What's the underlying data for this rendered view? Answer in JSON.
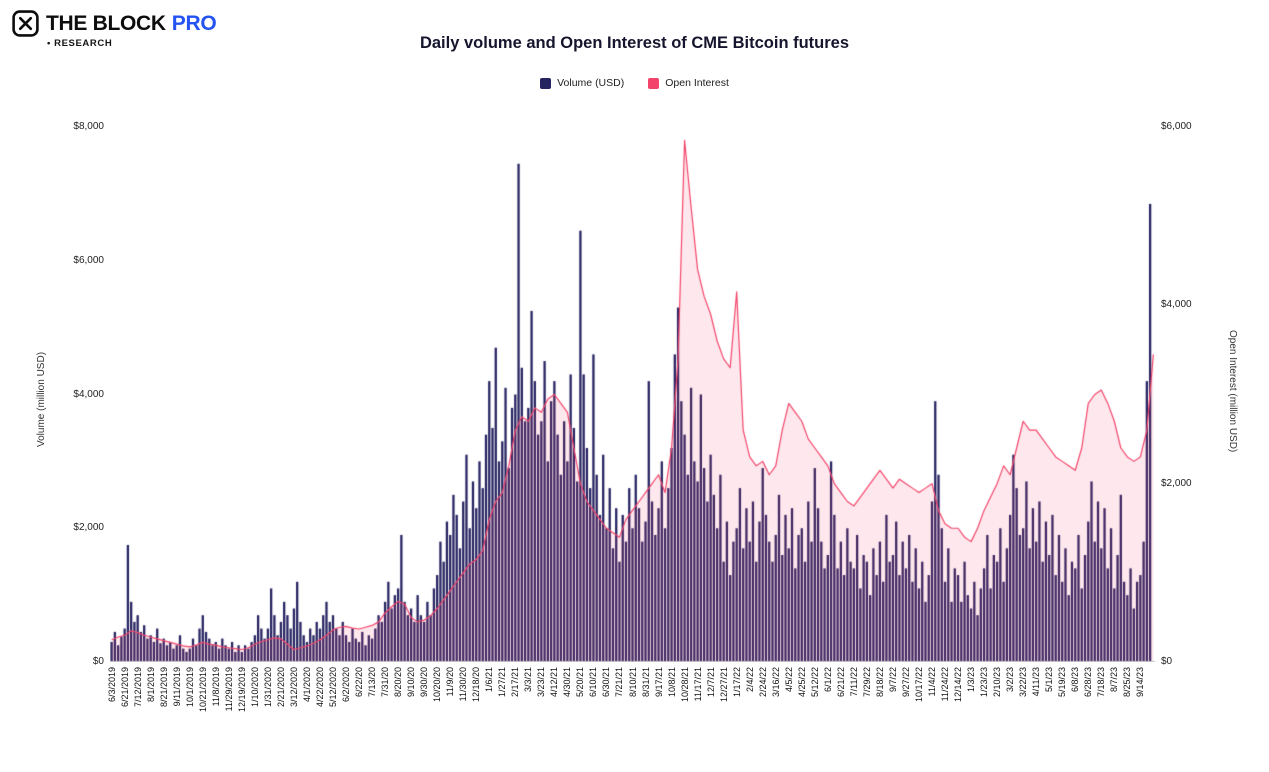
{
  "brand": {
    "name": "THE BLOCK",
    "suffix": "PRO",
    "sub": "• RESEARCH",
    "pro_color": "#2453f2"
  },
  "chart_data": {
    "type": "mixed",
    "title": "Daily volume and Open Interest of CME Bitcoin futures",
    "legend": [
      {
        "label": "Volume (USD)",
        "color": "#262361",
        "type": "bar"
      },
      {
        "label": "Open Interest",
        "color": "#f3456b",
        "type": "line"
      }
    ],
    "left_axis": {
      "label": "Volume (million USD)",
      "max": 8000,
      "ticks": [
        0,
        2000,
        4000,
        6000,
        8000
      ],
      "tick_labels": [
        "$0",
        "$2,000",
        "$4,000",
        "$6,000",
        "$8,000"
      ]
    },
    "right_axis": {
      "label": "Open Interest (million USD)",
      "max": 6000,
      "ticks": [
        0,
        2000,
        4000,
        6000
      ],
      "tick_labels": [
        "$0",
        "$2,000",
        "$4,000",
        "$6,000"
      ]
    },
    "x_labels": [
      "6/3/2019",
      "6/21/2019",
      "7/12/2019",
      "8/1/2019",
      "8/21/2019",
      "9/11/2019",
      "10/1/2019",
      "10/21/2019",
      "11/8/2019",
      "11/29/2019",
      "12/19/2019",
      "1/10/2020",
      "1/31/2020",
      "2/21/2020",
      "3/12/2020",
      "4/1/2020",
      "4/22/2020",
      "5/12/2020",
      "6/2/2020",
      "6/22/20",
      "7/13/20",
      "7/31/20",
      "8/20/20",
      "9/10/20",
      "9/30/20",
      "10/20/20",
      "11/9/20",
      "11/30/20",
      "12/18/20",
      "1/6/21",
      "1/27/21",
      "2/17/21",
      "3/3/21",
      "3/23/21",
      "4/12/21",
      "4/30/21",
      "5/20/21",
      "6/10/21",
      "6/30/21",
      "7/21/21",
      "8/10/21",
      "8/31/21",
      "9/17/21",
      "10/8/21",
      "10/28/21",
      "11/17/21",
      "12/7/21",
      "12/27/21",
      "1/17/22",
      "2/4/22",
      "2/24/22",
      "3/16/22",
      "4/5/22",
      "4/25/22",
      "5/12/22",
      "6/1/22",
      "6/21/22",
      "7/11/22",
      "7/29/22",
      "8/18/22",
      "9/7/22",
      "9/27/22",
      "10/17/22",
      "11/4/22",
      "11/24/22",
      "12/14/22",
      "1/3/23",
      "1/23/23",
      "2/10/23",
      "3/2/23",
      "3/22/23",
      "4/11/23",
      "5/1/23",
      "5/19/23",
      "6/8/23",
      "6/28/23",
      "7/18/23",
      "8/7/23",
      "8/25/23",
      "9/14/23"
    ],
    "bars_per_label": 4,
    "series": [
      {
        "name": "Volume (USD)",
        "type": "bar",
        "axis": "left",
        "color": "#262361",
        "values": [
          300,
          450,
          250,
          380,
          500,
          1750,
          900,
          600,
          700,
          450,
          550,
          350,
          400,
          300,
          500,
          280,
          350,
          250,
          300,
          200,
          250,
          400,
          200,
          150,
          200,
          350,
          250,
          500,
          700,
          450,
          350,
          250,
          300,
          200,
          350,
          250,
          200,
          300,
          150,
          250,
          150,
          250,
          200,
          300,
          400,
          700,
          500,
          350,
          500,
          1100,
          700,
          400,
          600,
          900,
          700,
          500,
          800,
          1200,
          600,
          400,
          300,
          500,
          400,
          600,
          500,
          700,
          900,
          600,
          700,
          500,
          400,
          600,
          400,
          300,
          500,
          350,
          300,
          450,
          250,
          400,
          350,
          500,
          700,
          600,
          900,
          1200,
          800,
          1000,
          1100,
          1900,
          900,
          700,
          800,
          600,
          1000,
          700,
          600,
          900,
          700,
          1100,
          1300,
          1800,
          1500,
          2100,
          1900,
          2500,
          2200,
          1700,
          2400,
          3100,
          2000,
          2700,
          2300,
          3000,
          2600,
          3400,
          4200,
          3500,
          4700,
          3000,
          3300,
          4100,
          2900,
          3800,
          4000,
          7450,
          4400,
          3600,
          3800,
          5250,
          4200,
          3400,
          3600,
          4500,
          3000,
          3900,
          4200,
          3400,
          2800,
          3600,
          3000,
          4300,
          3500,
          2700,
          6450,
          4300,
          3200,
          2600,
          4600,
          2800,
          2200,
          3100,
          2000,
          2600,
          1700,
          2300,
          1500,
          2200,
          1800,
          2600,
          2000,
          2800,
          2300,
          1800,
          2100,
          4200,
          2400,
          1900,
          2300,
          3000,
          2000,
          2600,
          3200,
          4600,
          5300,
          3900,
          3400,
          2800,
          4100,
          3000,
          2700,
          4000,
          2900,
          2400,
          3100,
          2500,
          2000,
          2800,
          1500,
          2100,
          1300,
          1800,
          2000,
          2600,
          1700,
          2300,
          1800,
          2400,
          1500,
          2100,
          2900,
          2200,
          1800,
          1500,
          1900,
          2500,
          1600,
          2200,
          1700,
          2300,
          1400,
          1900,
          2000,
          1500,
          2400,
          1800,
          2900,
          2300,
          1800,
          1400,
          1600,
          3000,
          2200,
          1400,
          1800,
          1300,
          2000,
          1500,
          1400,
          1900,
          1100,
          1600,
          1500,
          1000,
          1700,
          1300,
          1800,
          1200,
          2200,
          1500,
          1600,
          2100,
          1300,
          1800,
          1400,
          1900,
          1200,
          1700,
          1100,
          1500,
          900,
          1300,
          2400,
          3900,
          2800,
          2000,
          1200,
          1700,
          900,
          1400,
          1300,
          900,
          1500,
          1000,
          800,
          1200,
          700,
          1100,
          1400,
          1900,
          1100,
          1600,
          1500,
          2000,
          1200,
          1700,
          2200,
          3100,
          2600,
          1900,
          2000,
          2700,
          1700,
          2300,
          1800,
          2400,
          1500,
          2100,
          1600,
          2200,
          1300,
          1900,
          1200,
          1700,
          1000,
          1500,
          1400,
          1900,
          1100,
          1600,
          2100,
          2700,
          1800,
          2400,
          1700,
          2300,
          1400,
          2000,
          1100,
          1600,
          2500,
          1200,
          1000,
          1400,
          800,
          1200,
          1300,
          1800,
          4200,
          6850
        ]
      },
      {
        "name": "Open Interest",
        "type": "line",
        "axis": "right",
        "color": "#f3456b",
        "area_fill": "rgba(243,69,107,0.12)",
        "points_per_label": 2,
        "values": [
          250,
          280,
          300,
          350,
          330,
          300,
          280,
          260,
          240,
          220,
          200,
          180,
          170,
          190,
          220,
          200,
          190,
          170,
          160,
          150,
          140,
          160,
          200,
          230,
          250,
          270,
          260,
          200,
          140,
          160,
          180,
          210,
          250,
          300,
          360,
          390,
          400,
          380,
          370,
          390,
          410,
          450,
          550,
          620,
          680,
          650,
          500,
          450,
          470,
          520,
          600,
          700,
          800,
          900,
          1000,
          1100,
          1150,
          1250,
          1600,
          1800,
          1900,
          2200,
          2600,
          2750,
          2700,
          2850,
          2800,
          2950,
          3000,
          2900,
          2800,
          2400,
          2000,
          1800,
          1700,
          1600,
          1500,
          1450,
          1400,
          1600,
          1700,
          1800,
          1900,
          2000,
          2100,
          1900,
          2400,
          3400,
          5850,
          5100,
          4400,
          4100,
          3900,
          3600,
          3400,
          3300,
          4150,
          2600,
          2300,
          2200,
          2250,
          2100,
          2200,
          2600,
          2900,
          2800,
          2700,
          2500,
          2400,
          2300,
          2200,
          2000,
          1900,
          1800,
          1750,
          1850,
          1950,
          2050,
          2150,
          2050,
          1950,
          2050,
          2000,
          1950,
          1900,
          1950,
          2000,
          1700,
          1550,
          1500,
          1500,
          1400,
          1350,
          1500,
          1700,
          1850,
          2000,
          2200,
          2100,
          2400,
          2700,
          2600,
          2600,
          2500,
          2400,
          2300,
          2250,
          2200,
          2150,
          2400,
          2900,
          3000,
          3050,
          2900,
          2700,
          2400,
          2300,
          2250,
          2300,
          2600,
          3450
        ]
      }
    ]
  }
}
